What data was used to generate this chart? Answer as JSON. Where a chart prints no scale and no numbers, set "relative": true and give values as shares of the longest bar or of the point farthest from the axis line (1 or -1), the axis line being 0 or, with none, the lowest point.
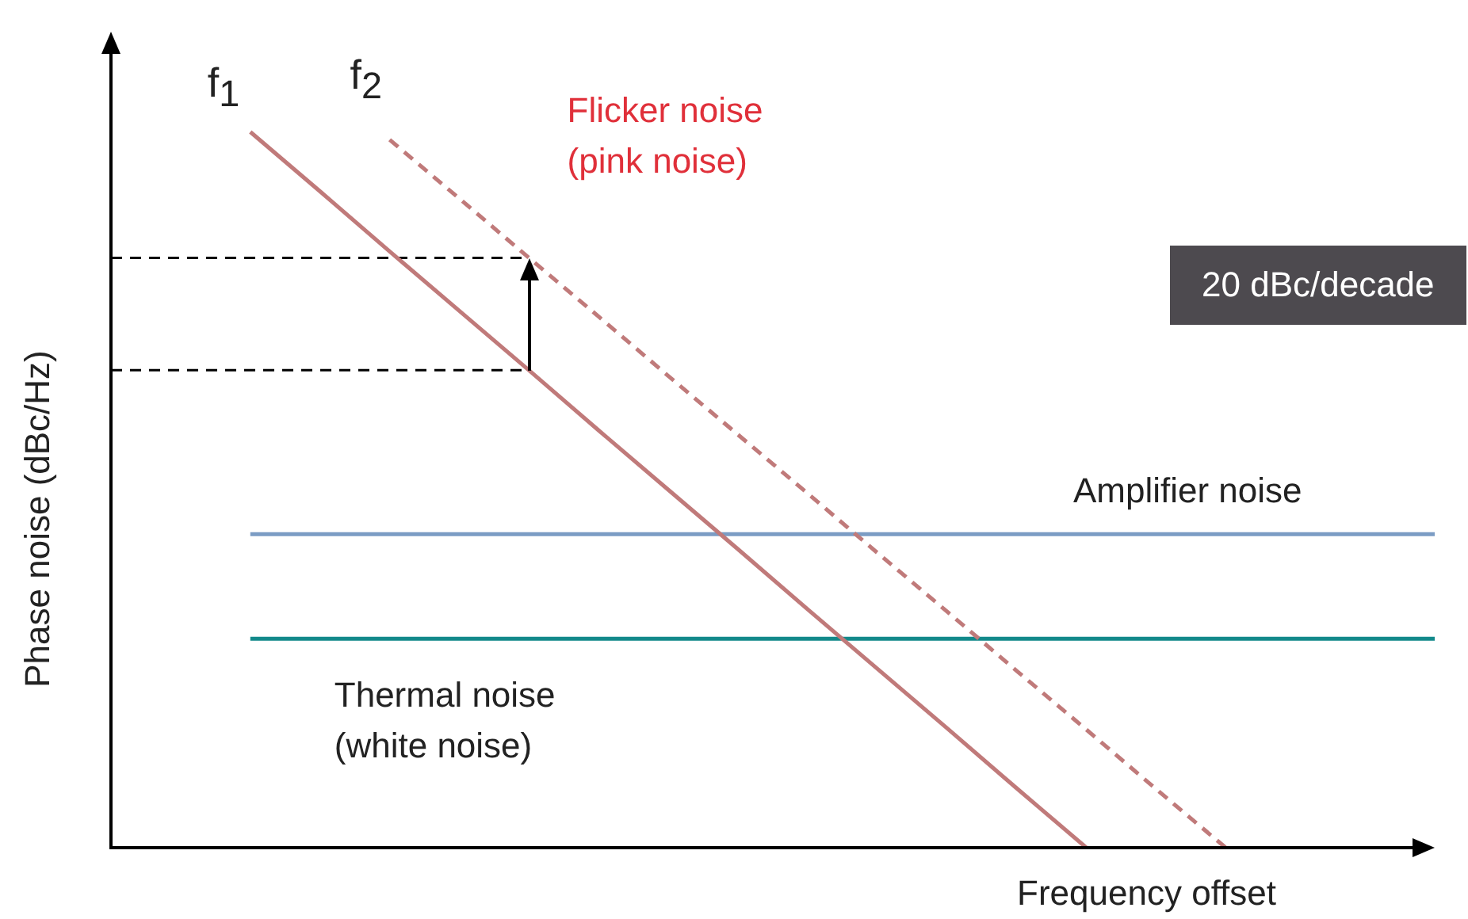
{
  "chart_data": {
    "type": "line",
    "relative": true,
    "marker": "none",
    "xlabel": "Frequency offset",
    "ylabel": "Phase noise (dBc/Hz)",
    "categories": [
      null,
      null,
      null,
      null,
      null,
      null,
      null,
      null,
      null,
      null,
      null,
      null,
      null,
      null,
      null,
      null,
      null,
      null,
      null,
      null
    ],
    "series": [
      {
        "color": "#c07a7a",
        "values": [
          null,
          null,
          1,
          0.917,
          0.833,
          0.75,
          0.667,
          0.583,
          0.5,
          0.417,
          0.333,
          0.25,
          0.167,
          0.083,
          0,
          null,
          null,
          null,
          null,
          null
        ]
      },
      {
        "color": "#c07a7a",
        "line_style": "dashed",
        "values": [
          null,
          null,
          null,
          null,
          0.989,
          0.907,
          0.824,
          0.742,
          0.659,
          0.577,
          0.495,
          0.412,
          0.33,
          0.247,
          0.165,
          0.082,
          0,
          null,
          null,
          null
        ]
      },
      {
        "color": "#7b9cc4",
        "values": [
          null,
          null,
          0.438,
          0.438,
          0.438,
          0.438,
          0.438,
          0.438,
          0.438,
          0.438,
          0.438,
          0.438,
          0.438,
          0.438,
          0.438,
          0.438,
          0.438,
          0.438,
          0.438,
          0.438
        ]
      },
      {
        "color": "#12898a",
        "values": [
          null,
          null,
          0.292,
          0.292,
          0.292,
          0.292,
          0.292,
          0.292,
          0.292,
          0.292,
          0.292,
          0.292,
          0.292,
          0.292,
          0.292,
          0.292,
          0.292,
          0.292,
          0.292,
          0.292
        ]
      },
      {
        "color": "#000000",
        "line_style": "dashed",
        "values": [
          0.824,
          0.824,
          0.824,
          0.824,
          0.824,
          0.824,
          0.824,
          null,
          null,
          null,
          null,
          null,
          null,
          null,
          null,
          null,
          null,
          null,
          null,
          null
        ]
      },
      {
        "color": "#000000",
        "line_style": "dashed",
        "values": [
          0.667,
          0.667,
          0.667,
          0.667,
          0.667,
          0.667,
          0.667,
          null,
          null,
          null,
          null,
          null,
          null,
          null,
          null,
          null,
          null,
          null,
          null,
          null
        ]
      }
    ],
    "annotations": [
      "f$_{1}$",
      "f$_{2}$",
      "Flicker noise (pink noise)",
      "20 dBc/decade",
      "Amplifier noise",
      "Thermal noise (white noise)"
    ]
  }
}
